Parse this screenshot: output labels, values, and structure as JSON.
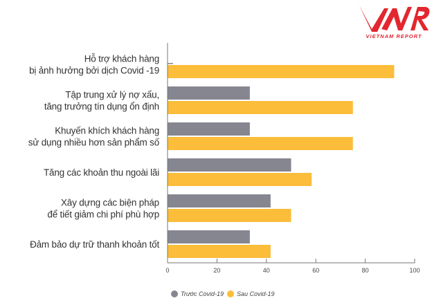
{
  "logo": {
    "text": "VNR",
    "subtitle": "VIETNAM REPORT"
  },
  "chart_data": {
    "type": "bar",
    "orientation": "horizontal",
    "categories": [
      [
        "Hỗ trợ khách hàng",
        "bị ảnh hưởng bởi dịch Covid -19"
      ],
      [
        "Tập trung xử lý nợ xấu,",
        "tăng trưởng tín dụng ổn định"
      ],
      [
        "Khuyến khích khách hàng",
        "sử dụng nhiều hơn sản phẩm số"
      ],
      [
        "Tăng các khoản thu ngoài lãi"
      ],
      [
        "Xây dựng các biện pháp",
        "để tiết giảm chi phí phù hợp"
      ],
      [
        "Đảm bảo dự trữ thanh khoản tốt"
      ]
    ],
    "series": [
      {
        "name": "Trước Covid-19",
        "color": "#868690",
        "values": [
          0,
          33.3,
          33.3,
          50,
          41.7,
          33.3
        ]
      },
      {
        "name": "Sau Covid-19",
        "color": "#fbbd3a",
        "values": [
          91.7,
          75,
          75,
          58.3,
          50,
          41.7
        ]
      }
    ],
    "xlim": [
      0,
      100
    ],
    "xticks": [
      0,
      20,
      40,
      60,
      80,
      100
    ],
    "legend_position": "bottom-left",
    "grid": false
  }
}
